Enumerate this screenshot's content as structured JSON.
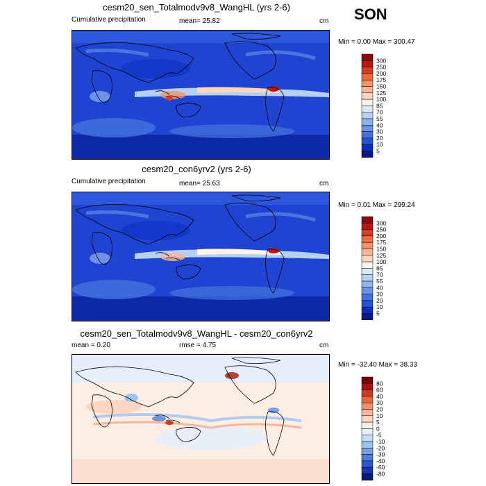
{
  "season": "SON",
  "panels": [
    {
      "title": "cesm20_sen_Totalmodv9v8_WangHL (yrs 2-6)",
      "left_label": "Cumulative precipitation",
      "center_label": "mean=  25.82",
      "units": "cm",
      "minmax": "Min =   0.00 Max = 300.47",
      "colorbar_levels": [
        "300",
        "250",
        "200",
        "175",
        "150",
        "125",
        "100",
        "85",
        "70",
        "55",
        "40",
        "30",
        "20",
        "10",
        "5"
      ],
      "colorbar_colors": [
        "#8b0a0a",
        "#b51a12",
        "#d93c20",
        "#ec6a3c",
        "#f4906a",
        "#f7b596",
        "#fad6bf",
        "#fdf3ea",
        "#dbe8f8",
        "#b6cff2",
        "#8fb3ec",
        "#6a95e6",
        "#4473de",
        "#2752d6",
        "#0c2fc2",
        "#061a8c"
      ],
      "style": "precip"
    },
    {
      "title": "cesm20_con6yrv2 (yrs 2-6)",
      "left_label": "Cumulative precipitation",
      "center_label": "mean=  25.63",
      "units": "cm",
      "minmax": "Min =   0.01 Max = 299.24",
      "colorbar_levels": [
        "300",
        "250",
        "200",
        "175",
        "150",
        "125",
        "100",
        "85",
        "70",
        "55",
        "40",
        "30",
        "20",
        "10",
        "5"
      ],
      "colorbar_colors": [
        "#8b0a0a",
        "#b51a12",
        "#d93c20",
        "#ec6a3c",
        "#f4906a",
        "#f7b596",
        "#fad6bf",
        "#fdf3ea",
        "#dbe8f8",
        "#b6cff2",
        "#8fb3ec",
        "#6a95e6",
        "#4473de",
        "#2752d6",
        "#0c2fc2",
        "#061a8c"
      ],
      "style": "precip"
    },
    {
      "title": "cesm20_sen_Totalmodv9v8_WangHL - cesm20_con6yrv2",
      "left_label": "mean =   0.20",
      "center_label": "rmse =   4.75",
      "units": "cm",
      "minmax": "Min = -32.40 Max =  38.33",
      "colorbar_levels": [
        "80",
        "60",
        "40",
        "30",
        "20",
        "10",
        "5",
        "0",
        "-5",
        "-10",
        "-20",
        "-30",
        "-40",
        "-60",
        "-80"
      ],
      "colorbar_colors": [
        "#7a0403",
        "#a8140c",
        "#d03a1c",
        "#e7663e",
        "#f2906c",
        "#f8b59a",
        "#fcd6c3",
        "#fdeee4",
        "#e4effb",
        "#c4dcf5",
        "#9ec2ee",
        "#769fe4",
        "#4f7bd9",
        "#2f57cd",
        "#1a35b0",
        "#0a1a7a"
      ],
      "style": "diff"
    }
  ]
}
